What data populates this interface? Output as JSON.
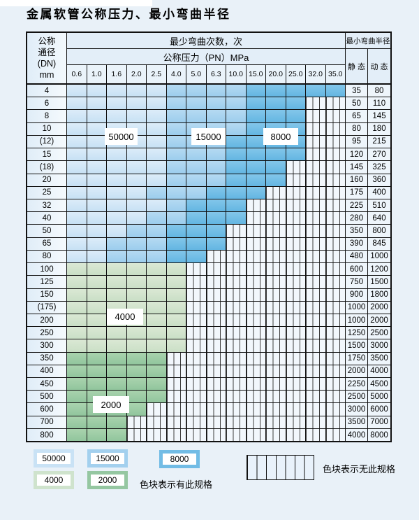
{
  "page": {
    "title": "金属软管公称压力、最小弯曲半径"
  },
  "colors": {
    "page_bg": "#e9f1f8",
    "blue_50000": "#c9e2f5",
    "blue_15000": "#a3d0ee",
    "blue_8000": "#72bce5",
    "green_4000": "#cfe3cd",
    "green_2000": "#95c7a1",
    "no_spec_bg": "#f2f7fc",
    "grid_line": "#111111"
  },
  "table": {
    "header": {
      "dn_lines": [
        "公称",
        "通径",
        "(DN)",
        "mm"
      ],
      "bend_cycles": "最少弯曲次数，次",
      "pressure": "公称压力（PN）MPa",
      "pressure_values": [
        "0.6",
        "1.0",
        "1.6",
        "2.0",
        "2.5",
        "4.0",
        "5.0",
        "6.3",
        "10.0",
        "15.0",
        "20.0",
        "25.0",
        "32.0",
        "35.0"
      ],
      "bend_radius": "最小弯曲半径",
      "static_label": "静 态",
      "dynamic_label": "动 态"
    },
    "cell_legend": {
      "L": "50000次 (浅蓝)",
      "M": "15000次 (中蓝)",
      "D": "8000次 (深蓝)",
      "G": "4000次 (浅绿)",
      "H": "2000次 (绿)",
      "X": "无此规格 (竖线阴影)"
    },
    "rows": [
      {
        "dn": "4",
        "cells": "LLLLLMMMMDDDDD",
        "static": "35",
        "dynamic": "80"
      },
      {
        "dn": "6",
        "cells": "LLLLLMMMMDDDXX",
        "static": "50",
        "dynamic": "110"
      },
      {
        "dn": "8",
        "cells": "LLLLLMMMMDDDXX",
        "static": "65",
        "dynamic": "145"
      },
      {
        "dn": "10",
        "cells": "LLLLLMMMMDDDXX",
        "static": "80",
        "dynamic": "180"
      },
      {
        "dn": "(12)",
        "cells": "LLLLLMMMDDDDXX",
        "static": "95",
        "dynamic": "215"
      },
      {
        "dn": "15",
        "cells": "LLLLLMMMDDDDXX",
        "static": "120",
        "dynamic": "270"
      },
      {
        "dn": "(18)",
        "cells": "LLLLLMMMDDDXXX",
        "static": "145",
        "dynamic": "325"
      },
      {
        "dn": "20",
        "cells": "LLLLLMMMDDDXXX",
        "static": "160",
        "dynamic": "360"
      },
      {
        "dn": "25",
        "cells": "LLLLMMMDDDXXXX",
        "static": "175",
        "dynamic": "400"
      },
      {
        "dn": "32",
        "cells": "LLLLLMDDDXXXXX",
        "static": "225",
        "dynamic": "510"
      },
      {
        "dn": "40",
        "cells": "LLLLMMDDDXXXXX",
        "static": "280",
        "dynamic": "640"
      },
      {
        "dn": "50",
        "cells": "LLLMMDDDXXXXXX",
        "static": "350",
        "dynamic": "800"
      },
      {
        "dn": "65",
        "cells": "LLMMMDDDXXXXXX",
        "static": "390",
        "dynamic": "845"
      },
      {
        "dn": "80",
        "cells": "LLMMMDDXXXXXXX",
        "static": "480",
        "dynamic": "1000"
      },
      {
        "dn": "100",
        "cells": "GGGGGGXXXXXXXX",
        "static": "600",
        "dynamic": "1200"
      },
      {
        "dn": "125",
        "cells": "GGGGGGXXXXXXXX",
        "static": "750",
        "dynamic": "1500"
      },
      {
        "dn": "150",
        "cells": "GGGGGGXXXXXXXX",
        "static": "900",
        "dynamic": "1800"
      },
      {
        "dn": "(175)",
        "cells": "GGGGGGXXXXXXXX",
        "static": "1000",
        "dynamic": "2000"
      },
      {
        "dn": "200",
        "cells": "GGGGGGXXXXXXXX",
        "static": "1000",
        "dynamic": "2000"
      },
      {
        "dn": "250",
        "cells": "GGGGGGXXXXXXXX",
        "static": "1250",
        "dynamic": "2500"
      },
      {
        "dn": "300",
        "cells": "GGGGGGXXXXXXXX",
        "static": "1500",
        "dynamic": "3000"
      },
      {
        "dn": "350",
        "cells": "HHHHHXXXXXXXXX",
        "static": "1750",
        "dynamic": "3500"
      },
      {
        "dn": "400",
        "cells": "HHHHHXXXXXXXXX",
        "static": "2000",
        "dynamic": "4000"
      },
      {
        "dn": "450",
        "cells": "HHHHHXXXXXXXXX",
        "static": "2250",
        "dynamic": "4500"
      },
      {
        "dn": "500",
        "cells": "HHHHHXXXXXXXXX",
        "static": "2500",
        "dynamic": "5000"
      },
      {
        "dn": "600",
        "cells": "HHHHXXXXXXXXXX",
        "static": "3000",
        "dynamic": "6000"
      },
      {
        "dn": "700",
        "cells": "HHHXXXXXXXXXXX",
        "static": "3500",
        "dynamic": "7000"
      },
      {
        "dn": "800",
        "cells": "HHHXXXXXXXXXXX",
        "static": "4000",
        "dynamic": "8000"
      }
    ],
    "overlay_labels": [
      "50000",
      "15000",
      "8000",
      "4000",
      "2000"
    ]
  },
  "legend": {
    "swatches": [
      {
        "label": "50000",
        "code": "L"
      },
      {
        "label": "15000",
        "code": "M"
      },
      {
        "label": "8000",
        "code": "D"
      },
      {
        "label": "4000",
        "code": "G"
      },
      {
        "label": "2000",
        "code": "H"
      }
    ],
    "has_spec_text": "色块表示有此规格",
    "no_spec_text": "色块表示无此规格"
  }
}
